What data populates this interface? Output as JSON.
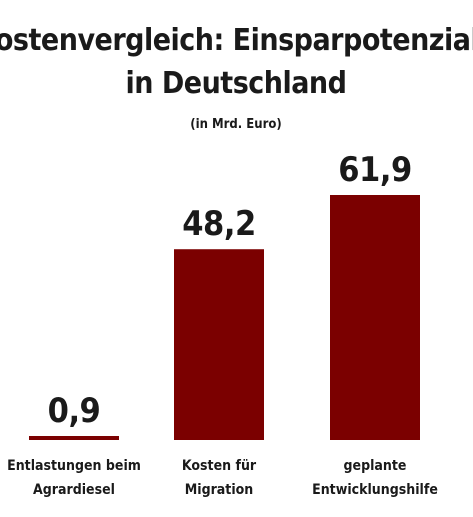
{
  "chart_data": {
    "type": "bar",
    "title_lines": [
      "Kostenvergleich: Einsparpotenziale",
      "in Deutschland"
    ],
    "subtitle": "(in Mrd. Euro)",
    "categories": [
      [
        "Entlastungen beim",
        "Agrardiesel"
      ],
      [
        "Kosten für",
        "Migration"
      ],
      [
        "geplante",
        "Entwicklungshilfe"
      ]
    ],
    "values": [
      0.9,
      48.2,
      61.9
    ],
    "value_labels": [
      "0,9",
      "48,2",
      "61,9"
    ],
    "ylim": [
      0,
      61.9
    ],
    "bar_color": "#7b0000",
    "grid": false,
    "legend": "none"
  }
}
